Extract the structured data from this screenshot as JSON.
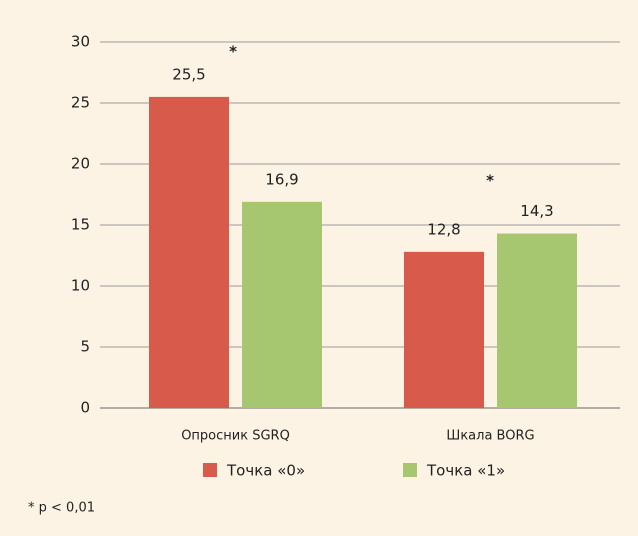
{
  "chart_data": {
    "type": "bar",
    "categories": [
      "Опросник SGRQ",
      "Шкала BORG"
    ],
    "series": [
      {
        "name": "Точка «0»",
        "color": "#d85a4b",
        "values": [
          25.5,
          12.8
        ],
        "value_labels": [
          "25,5",
          "12,8"
        ]
      },
      {
        "name": "Точка «1»",
        "color": "#a6c66f",
        "values": [
          16.9,
          14.3
        ],
        "value_labels": [
          "16,9",
          "14,3"
        ]
      }
    ],
    "ylim": [
      0,
      30
    ],
    "yticks": [
      0,
      5,
      10,
      15,
      20,
      25,
      30
    ],
    "grid": true,
    "annotations": [
      "*",
      "*"
    ],
    "footnote": "* p < 0,01"
  }
}
